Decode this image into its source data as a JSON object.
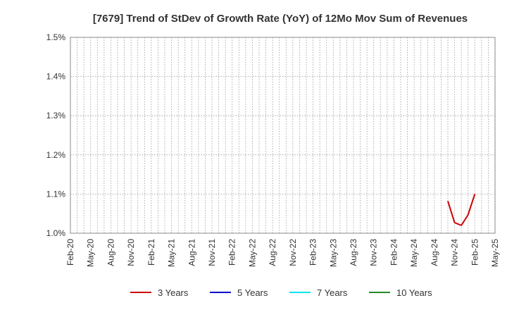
{
  "chart_data": {
    "type": "line",
    "title": "[7679]  Trend of StDev of Growth Rate (YoY) of 12Mo Mov Sum of Revenues",
    "xlabel": "",
    "ylabel": "",
    "y_unit": "%",
    "ylim": [
      1.0,
      1.5
    ],
    "y_ticks": [
      1.0,
      1.1,
      1.2,
      1.3,
      1.4,
      1.5
    ],
    "y_tick_labels": [
      "1.0%",
      "1.1%",
      "1.2%",
      "1.3%",
      "1.4%",
      "1.5%"
    ],
    "x_range": [
      "2020-02",
      "2025-05"
    ],
    "x_tick_labels": [
      "Feb-20",
      "May-20",
      "Aug-20",
      "Nov-20",
      "Feb-21",
      "May-21",
      "Aug-21",
      "Nov-21",
      "Feb-22",
      "May-22",
      "Aug-22",
      "Nov-22",
      "Feb-23",
      "May-23",
      "Aug-23",
      "Nov-23",
      "Feb-24",
      "May-24",
      "Aug-24",
      "Nov-24",
      "Feb-25",
      "May-25"
    ],
    "grid": true,
    "legend_position": "bottom",
    "series": [
      {
        "name": "3 Years",
        "color": "#cc0000",
        "points": [
          {
            "x": "2024-10",
            "y": 1.082
          },
          {
            "x": "2024-11",
            "y": 1.027
          },
          {
            "x": "2024-12",
            "y": 1.02
          },
          {
            "x": "2025-01",
            "y": 1.047
          },
          {
            "x": "2025-02",
            "y": 1.1
          }
        ]
      },
      {
        "name": "5 Years",
        "color": "#0000cc",
        "points": []
      },
      {
        "name": "7 Years",
        "color": "#00e5ee",
        "points": []
      },
      {
        "name": "10 Years",
        "color": "#228b22",
        "points": []
      }
    ]
  }
}
